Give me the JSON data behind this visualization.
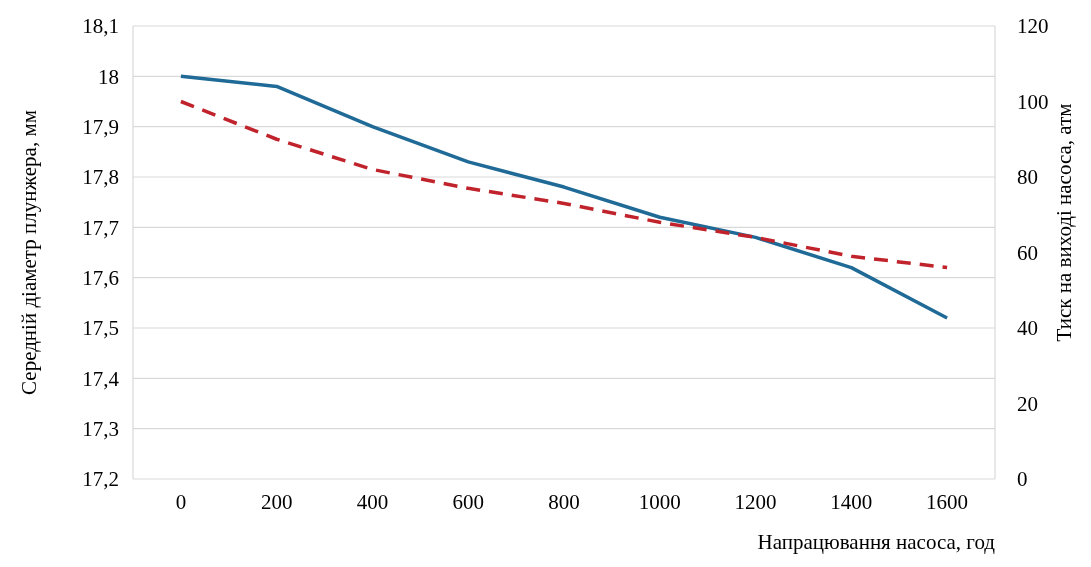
{
  "chart_data": {
    "type": "line",
    "xlabel": "Напрацювання насоса, год",
    "ylabel": "Середній діаметр плунжера, мм",
    "y2label": "Тиск на виході насоса, атм",
    "categories": [
      "0",
      "200",
      "400",
      "600",
      "800",
      "1000",
      "1200",
      "1400",
      "1600"
    ],
    "series": [
      {
        "color": "#1f6a96",
        "values": [
          18.0,
          17.98,
          17.9,
          17.83,
          17.78,
          17.72,
          17.68,
          17.62,
          17.52
        ],
        "line_style": "solid"
      },
      {
        "color": "#c0232b",
        "values": [
          100,
          90,
          82,
          77,
          73,
          68,
          64,
          59,
          56
        ],
        "axis": "y2",
        "line_style": "dashed"
      }
    ],
    "ylim": [
      17.2,
      18.1
    ],
    "yticks": [
      {
        "value": 17.2,
        "label": "17,2"
      },
      {
        "value": 17.3,
        "label": "17,3"
      },
      {
        "value": 17.4,
        "label": "17,4"
      },
      {
        "value": 17.5,
        "label": "17,5"
      },
      {
        "value": 17.6,
        "label": "17,6"
      },
      {
        "value": 17.7,
        "label": "17,7"
      },
      {
        "value": 17.8,
        "label": "17,8"
      },
      {
        "value": 17.9,
        "label": "17,9"
      },
      18,
      {
        "value": 18.1,
        "label": "18,1"
      }
    ],
    "y2lim": [
      0,
      120
    ],
    "y2ticks": [
      0,
      20,
      40,
      60,
      80,
      100,
      120
    ],
    "grid": "y"
  }
}
